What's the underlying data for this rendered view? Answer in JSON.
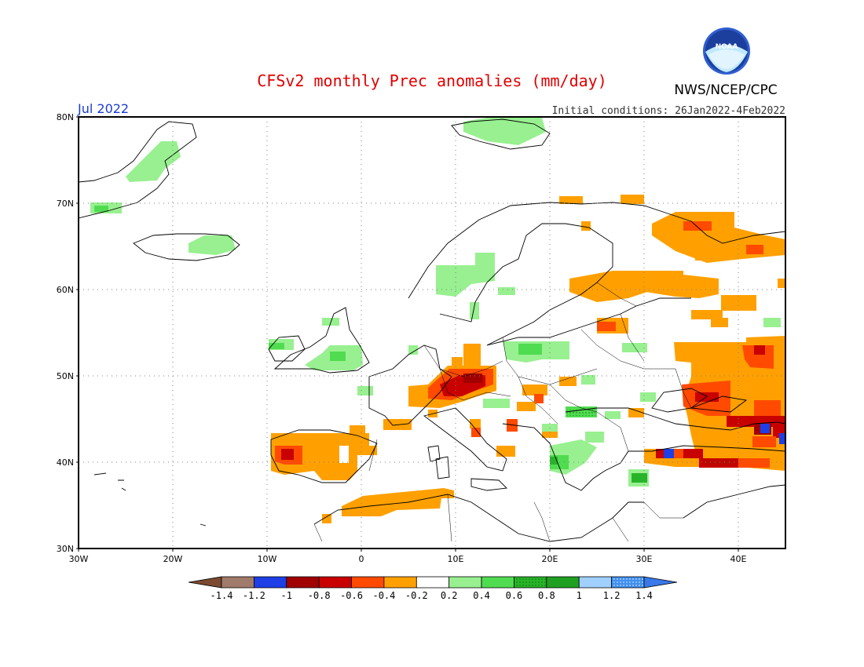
{
  "title": "CFSv2 monthly Prec anomalies (mm/day)",
  "agency": "NWS/NCEP/CPC",
  "logo_text": "NOAA",
  "valid_month": "Jul 2022",
  "initial_conditions": "Initial conditions: 26Jan2022-4Feb2022",
  "colors": {
    "title": "#e00000",
    "month": "#1a3cd6",
    "gridline": "#808080",
    "frame": "#000000"
  },
  "map": {
    "lon_range": [
      -30,
      45
    ],
    "lat_range": [
      30,
      80
    ],
    "lat_labels": [
      "30N",
      "40N",
      "50N",
      "60N",
      "70N",
      "80N"
    ],
    "lon_labels": [
      "30W",
      "20W",
      "10W",
      "0",
      "10E",
      "20E",
      "30E",
      "40E"
    ],
    "gridlines": "dotted"
  },
  "legend": {
    "tick_labels": [
      "-1.4",
      "-1.2",
      "-1",
      "-0.8",
      "-0.6",
      "-0.4",
      "-0.2",
      "0.2",
      "0.4",
      "0.6",
      "0.8",
      "1",
      "1.2",
      "1.4"
    ],
    "bins": [
      {
        "color": "#7b4a30",
        "kind": "arrow-left"
      },
      {
        "color": "#a07a6a"
      },
      {
        "color": "#1e3ee6"
      },
      {
        "color": "#a00000"
      },
      {
        "color": "#c80000"
      },
      {
        "color": "#ff4a00"
      },
      {
        "color": "#ffa000"
      },
      {
        "color": "#ffffff"
      },
      {
        "color": "#98f090"
      },
      {
        "color": "#50dc50"
      },
      {
        "color": "#28b428",
        "dotted": true
      },
      {
        "color": "#20a020"
      },
      {
        "color": "#a0d0ff"
      },
      {
        "color": "#4090f0",
        "dotted": true
      },
      {
        "color": "#3878e8",
        "kind": "arrow-right"
      }
    ]
  },
  "anomaly_regions": [
    {
      "name": "Iberia",
      "value": -0.4
    },
    {
      "name": "Portugal coast",
      "value": -0.6
    },
    {
      "name": "North Africa (Algeria/Tunisia)",
      "value": -0.4
    },
    {
      "name": "France/Switzerland/S Germany",
      "value": -0.6
    },
    {
      "name": "Czechia/S Germany",
      "value": -0.8
    },
    {
      "name": "Italy (north)",
      "value": -0.4
    },
    {
      "name": "Ireland/UK",
      "value": 0.4
    },
    {
      "name": "Southern Norway",
      "value": 0.2
    },
    {
      "name": "Poland",
      "value": 0.4
    },
    {
      "name": "Balkans/Greece",
      "value": 0.4
    },
    {
      "name": "Western Turkey",
      "value": 0.6
    },
    {
      "name": "Anatolia (north)",
      "value": -0.8
    },
    {
      "name": "Caucasus",
      "value": -1.2
    },
    {
      "name": "Southern Russia/Ukraine",
      "value": -0.4
    },
    {
      "name": "Northwest Russia",
      "value": -0.4
    },
    {
      "name": "Finland/Baltic",
      "value": -0.4
    },
    {
      "name": "Greenland east coast",
      "value": 0.2
    },
    {
      "name": "Iceland",
      "value": 0.4
    },
    {
      "name": "Svalbard",
      "value": 0.2
    }
  ]
}
